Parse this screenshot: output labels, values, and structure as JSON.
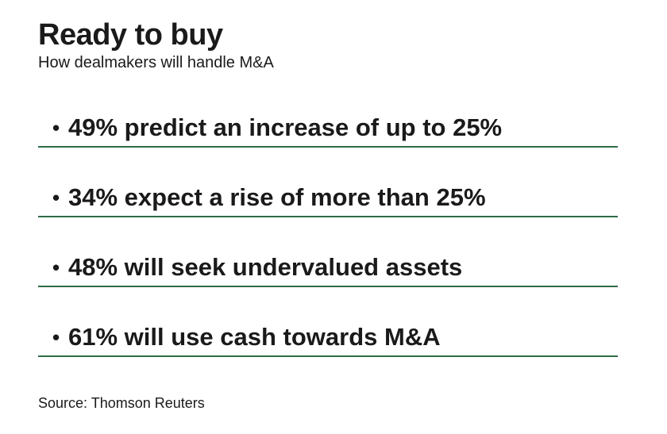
{
  "title": "Ready to buy",
  "subtitle": "How dealmakers will handle M&A",
  "bullet_glyph": "•",
  "items": [
    {
      "text": "49% predict an increase of up to 25%"
    },
    {
      "text": "34% expect a rise of more than 25%"
    },
    {
      "text": "48% will seek undervalued assets"
    },
    {
      "text": "61% will use cash towards M&A"
    }
  ],
  "source": "Source: Thomson Reuters",
  "colors": {
    "divider": "#2f6b46",
    "text": "#1a1a1a"
  }
}
